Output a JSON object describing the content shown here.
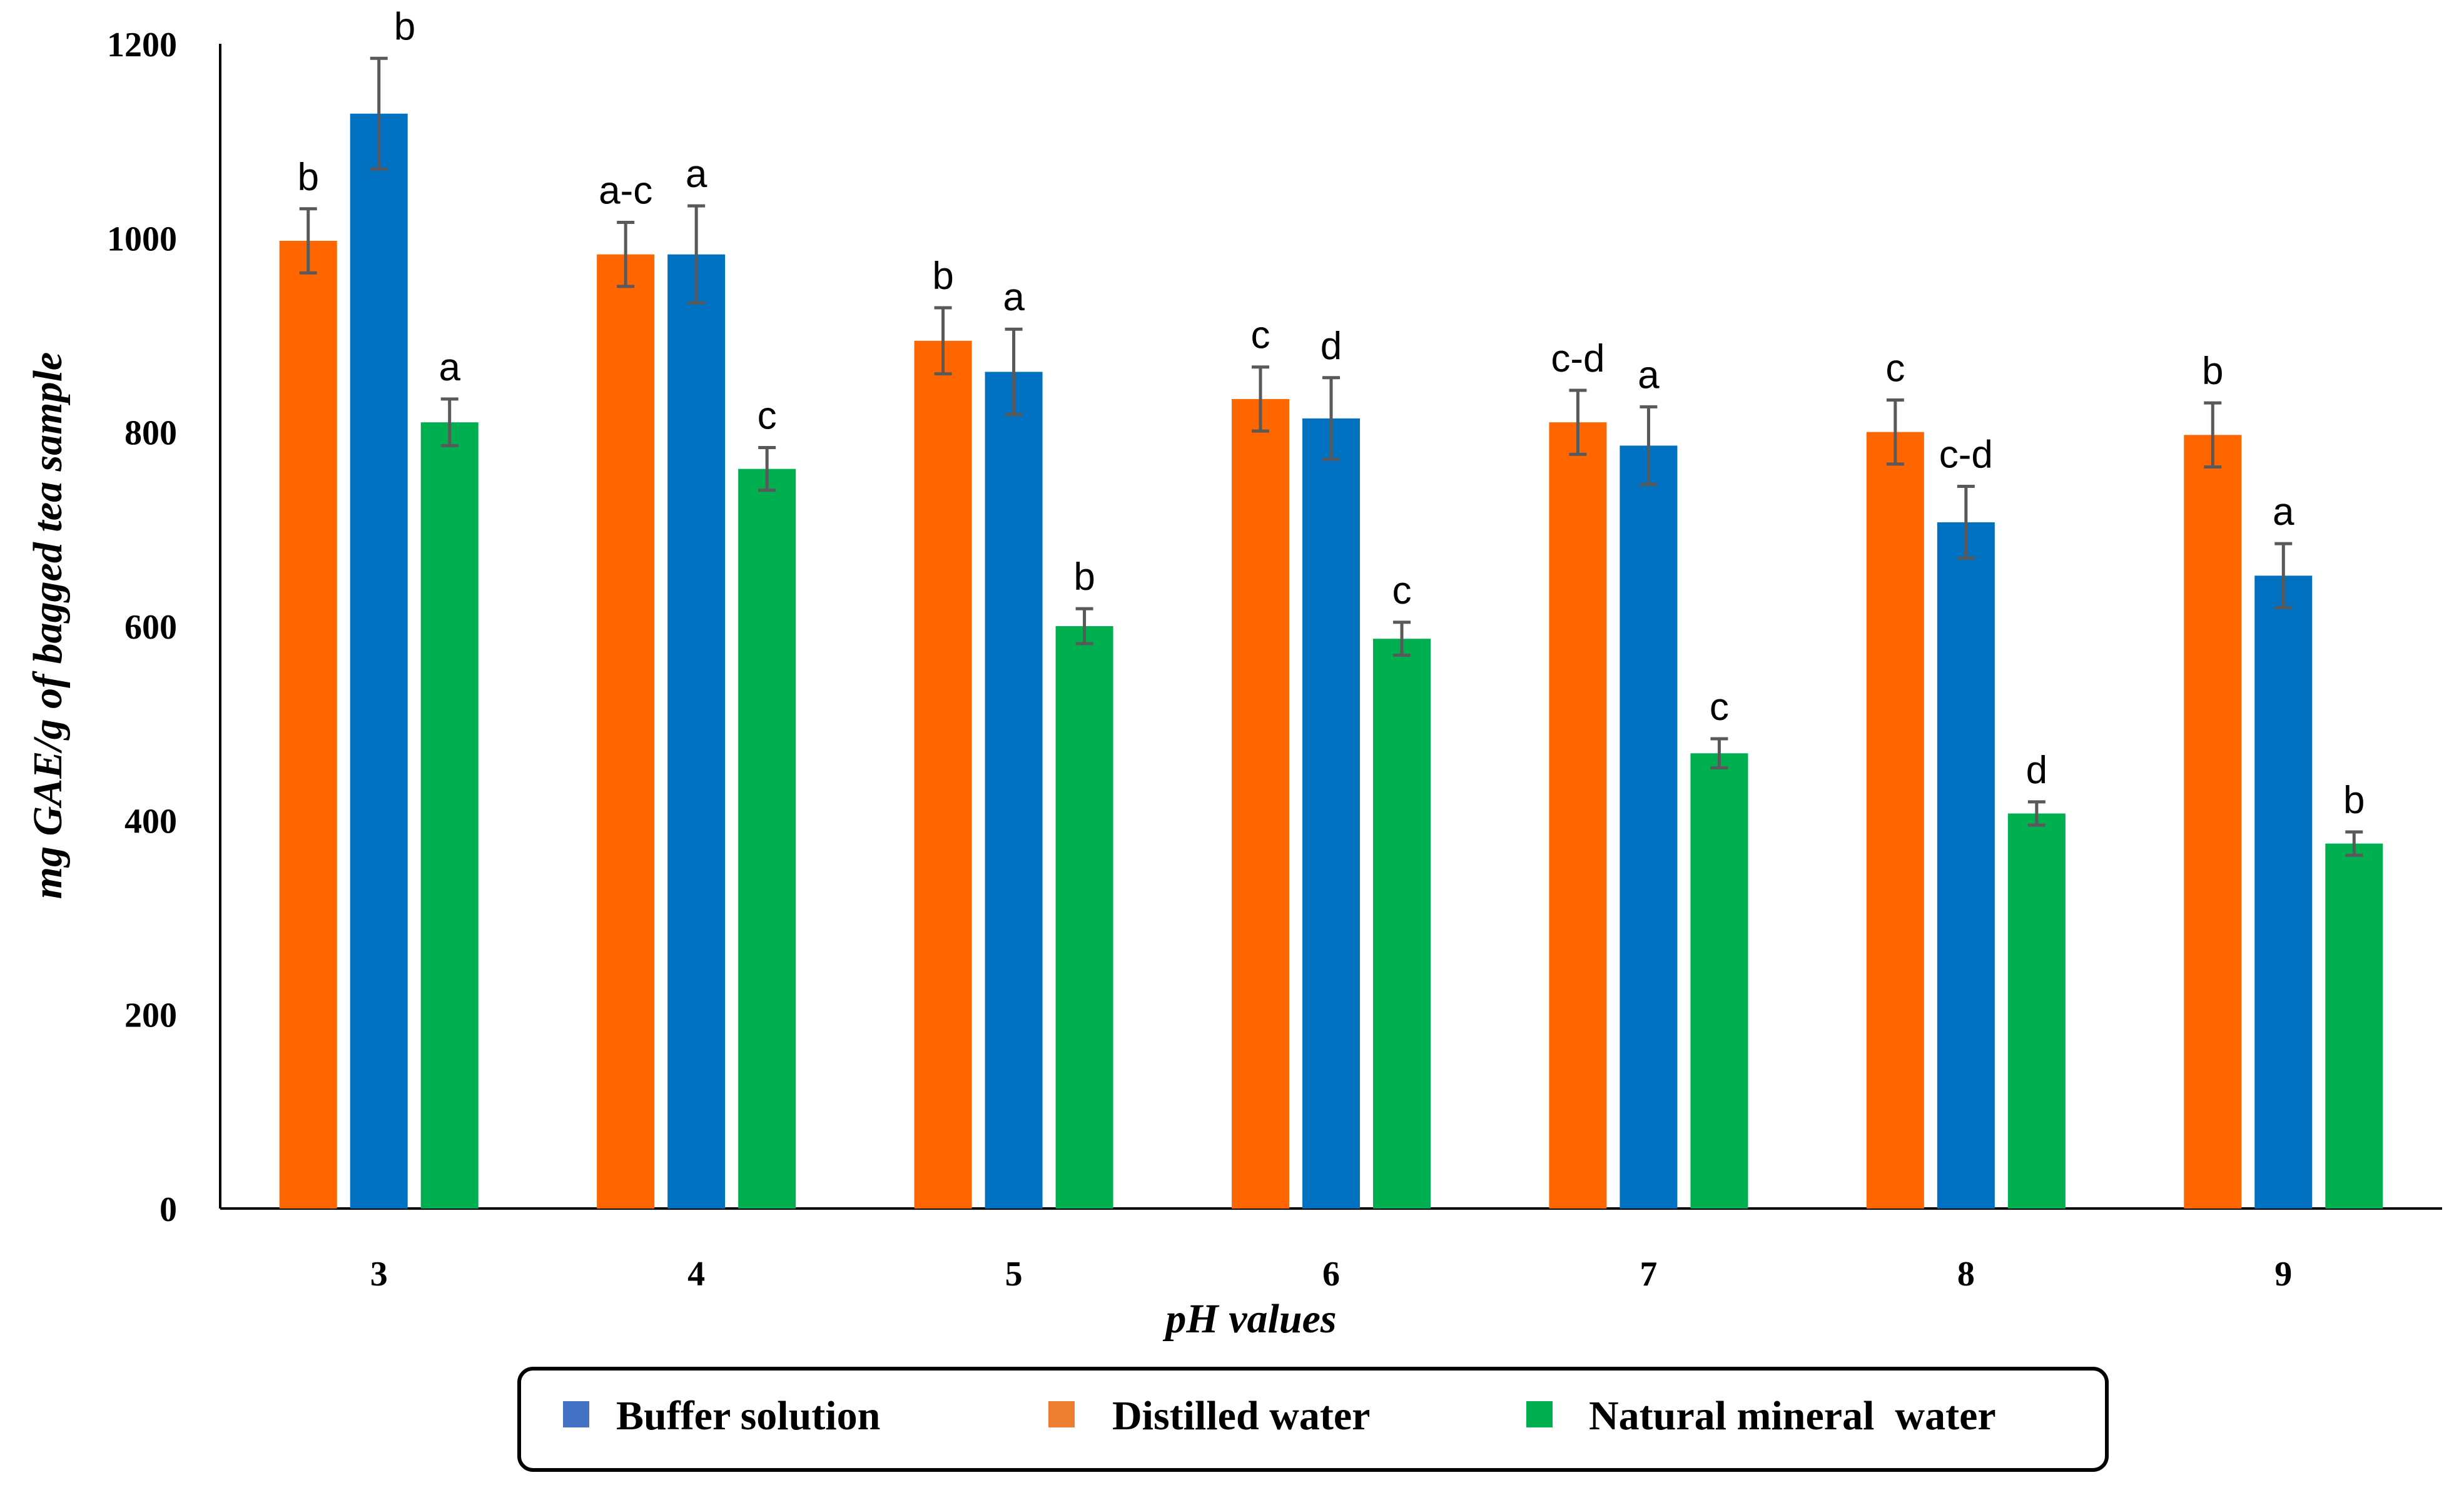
{
  "chart_data": {
    "type": "bar",
    "title": "",
    "xlabel": "pH values",
    "ylabel": "mg GAE/g of bagged tea sample",
    "ylim": [
      0,
      1200
    ],
    "yticks": [
      0,
      200,
      400,
      600,
      800,
      1000,
      1200
    ],
    "grid": false,
    "legend_position": "bottom",
    "categories": [
      "3",
      "4",
      "5",
      "6",
      "7",
      "8",
      "9"
    ],
    "series": [
      {
        "name": "Distilled water",
        "color": "#FF6600",
        "values": [
          997,
          983,
          894,
          834,
          810,
          800,
          797
        ],
        "errors": [
          33,
          33,
          34,
          33,
          33,
          33,
          33
        ],
        "letters": [
          "b",
          "a-c",
          "b",
          "c",
          "c-d",
          "c",
          "b"
        ]
      },
      {
        "name": "Buffer solution",
        "color": "#0070C0",
        "values": [
          1128,
          983,
          862,
          814,
          786,
          707,
          652
        ],
        "errors": [
          57,
          50,
          44,
          42,
          40,
          37,
          33
        ],
        "letters": [
          "b",
          "a",
          "a",
          "d",
          "a",
          "c-d",
          "a"
        ]
      },
      {
        "name": "Natural mineral water",
        "color": "#00B050",
        "values": [
          810,
          762,
          600,
          587,
          469,
          407,
          376
        ],
        "errors": [
          24,
          22,
          18,
          17,
          15,
          12,
          12
        ],
        "letters": [
          "a",
          "c",
          "b",
          "c",
          "c",
          "d",
          "b"
        ]
      }
    ],
    "legend": [
      {
        "name": "Buffer solution",
        "color": "#4472C4"
      },
      {
        "name": "Distilled water",
        "color": "#ED7D31"
      },
      {
        "name": "Natural mineral  water",
        "color": "#00B050"
      }
    ]
  }
}
